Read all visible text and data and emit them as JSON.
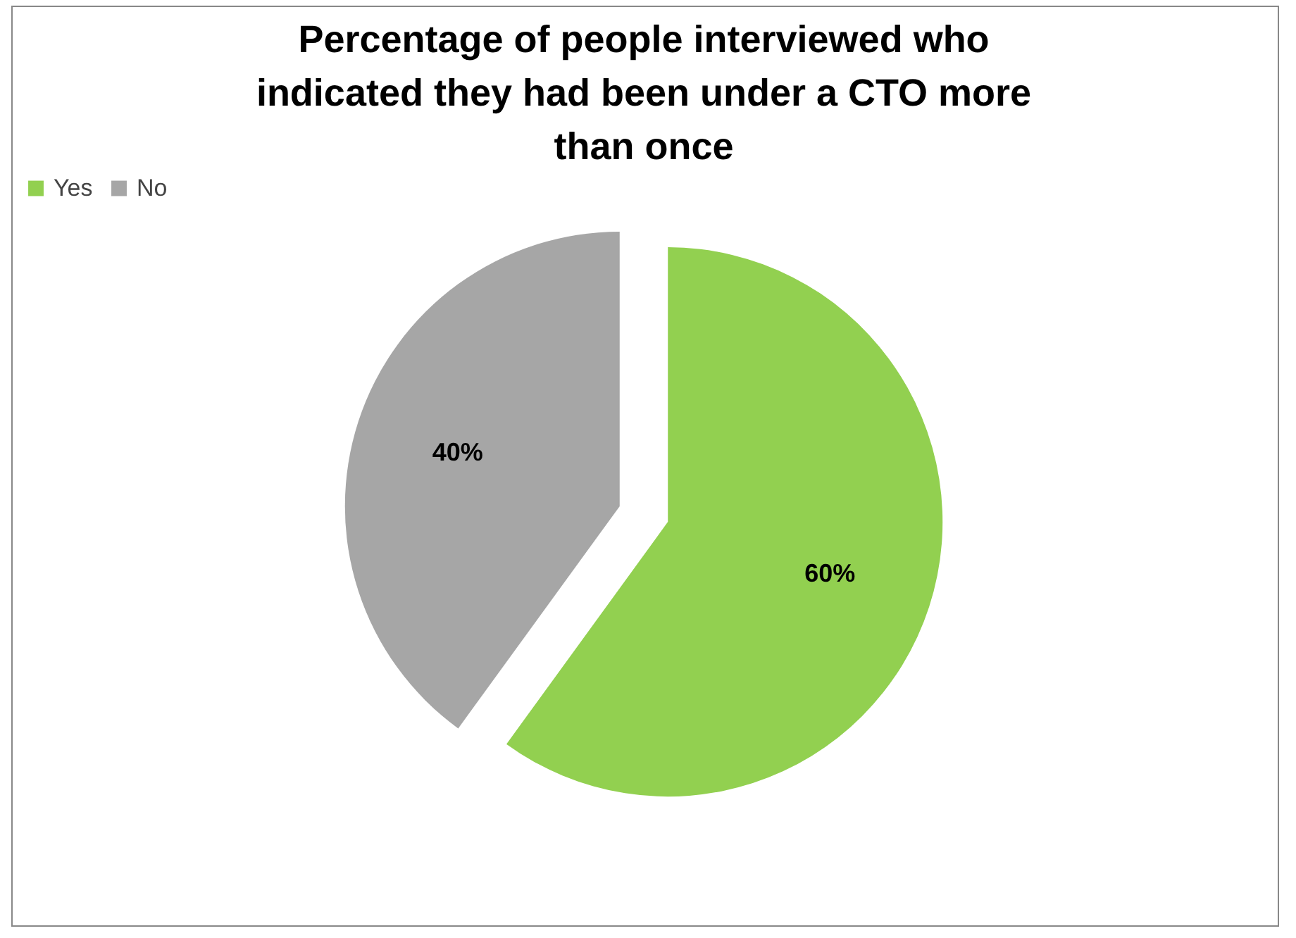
{
  "chart_data": {
    "type": "pie",
    "title": "Percentage of people interviewed who indicated they had been under a CTO more than once",
    "categories": [
      "Yes",
      "No"
    ],
    "values": [
      60,
      40
    ],
    "colors": [
      "#92d050",
      "#a6a6a6"
    ],
    "value_labels": [
      "60%",
      "40%"
    ],
    "legend": "top"
  }
}
